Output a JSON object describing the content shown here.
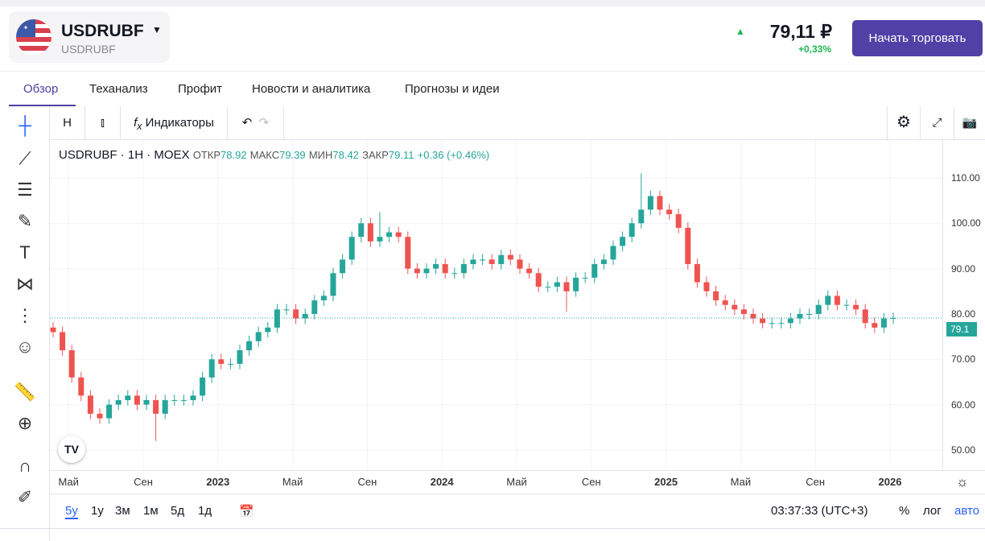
{
  "header": {
    "symbol": "USDRUBF",
    "subtitle": "USDRUBF",
    "price": "79,11 ₽",
    "change": "+0,33%",
    "trade_button": "Начать торговать",
    "flag_icon": "us-flag-icon"
  },
  "tabs": [
    "Обзор",
    "Теханализ",
    "Профит",
    "Новости и аналитика",
    "Прогнозы и идеи"
  ],
  "toolbar": {
    "interval": "H",
    "indicators": "Индикаторы"
  },
  "legend": {
    "symbol": "USDRUBF",
    "interval": "1H",
    "exchange": "MOEX",
    "open_label": "ОТКР",
    "open": "78.92",
    "high_label": "МАКС",
    "high": "79.39",
    "low_label": "МИН",
    "low": "78.42",
    "close_label": "ЗАКР",
    "close": "79.11",
    "change": "+0.36 (+0.46%)"
  },
  "colors": {
    "up": "#26a69a",
    "down": "#ef5350",
    "accent": "#5140a6",
    "link": "#2962ff"
  },
  "bottom": {
    "ranges": [
      "5y",
      "1y",
      "3м",
      "1м",
      "5д",
      "1д"
    ],
    "time": "03:37:33 (UTC+3)",
    "percent": "%",
    "log": "лог",
    "auto": "авто"
  },
  "chart_data": {
    "type": "candlestick",
    "symbol": "USDRUBF",
    "ylim": [
      48,
      113
    ],
    "y_ticks": [
      "110.00",
      "100.00",
      "90.00",
      "80.00",
      "70.00",
      "60.00",
      "50.00"
    ],
    "y_tick_values": [
      110,
      100,
      90,
      80,
      70,
      60,
      50
    ],
    "x_ticks": [
      {
        "label": "Май",
        "b": false,
        "m": 1
      },
      {
        "label": "Сен",
        "b": false,
        "m": 5
      },
      {
        "label": "2023",
        "b": true,
        "m": 9
      },
      {
        "label": "Май",
        "b": false,
        "m": 13
      },
      {
        "label": "Сен",
        "b": false,
        "m": 17
      },
      {
        "label": "2024",
        "b": true,
        "m": 21
      },
      {
        "label": "Май",
        "b": false,
        "m": 25
      },
      {
        "label": "Сен",
        "b": false,
        "m": 29
      },
      {
        "label": "2025",
        "b": true,
        "m": 33
      },
      {
        "label": "Май",
        "b": false,
        "m": 37
      },
      {
        "label": "Сен",
        "b": false,
        "m": 41
      },
      {
        "label": "2026",
        "b": true,
        "m": 45
      }
    ],
    "period": "semi-monthly closes from Apr 2022",
    "closes": [
      76,
      72,
      66,
      62,
      58,
      57,
      60,
      61,
      62,
      60,
      61,
      58,
      61,
      61,
      61,
      62,
      66,
      70,
      69,
      69,
      72,
      74,
      76,
      77,
      81,
      81,
      79,
      80,
      83,
      84,
      89,
      92,
      97,
      100,
      96,
      97,
      98,
      97,
      90,
      89,
      90,
      91,
      89,
      89,
      91,
      92,
      92,
      91,
      93,
      92,
      90,
      89,
      86,
      86,
      87,
      85,
      88,
      88,
      91,
      92,
      95,
      97,
      100,
      103,
      106,
      103,
      102,
      99,
      91,
      87,
      85,
      83,
      82,
      81,
      80,
      79,
      78,
      78,
      78,
      79,
      80,
      80,
      82,
      84,
      82,
      82,
      81,
      78,
      77,
      79,
      79.1
    ],
    "extremes": {
      "11": {
        "low": 52
      },
      "35": {
        "high": 102.5
      },
      "55": {
        "low": 80.5
      },
      "63": {
        "high": 111
      }
    },
    "last_price": "79.1"
  }
}
